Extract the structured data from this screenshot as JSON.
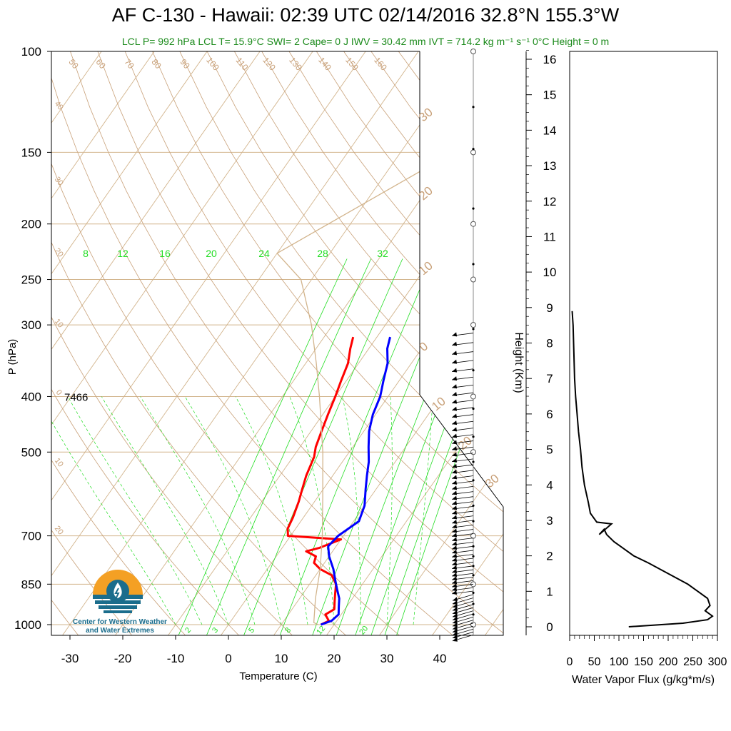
{
  "title": "AF C-130 - Hawaii: 02:39 UTC 02/14/2016  32.8°N 155.3°W",
  "subtitle": "LCL P= 992 hPa  LCL T= 15.9°C  SWI= 2  Cape= 0 J  IWV = 30.42 mm  IVT = 714.2 kg m⁻¹ s⁻¹  0°C Height = 0 m",
  "logo_text_line1": "Center for Western Weather",
  "logo_text_line2": "and Water Extremes",
  "colors": {
    "temperature": "#ff0000",
    "dewpoint": "#0000ff",
    "isotherm": "#d2b48c",
    "mixing_ratio": "#22dd22",
    "adiabat": "#c8a078",
    "subtitle": "#1a8a1a",
    "logo_orange": "#f4a024",
    "logo_blue": "#1b6d8c"
  },
  "chart_data": [
    {
      "type": "line",
      "name": "skew-t",
      "xlabel": "Temperature (C)",
      "ylabel": "P (hPa)",
      "xlim": [
        -35,
        50
      ],
      "ylim": [
        1050,
        100
      ],
      "y_scale": "log",
      "x_ticks": [
        -30,
        -20,
        -10,
        0,
        10,
        20,
        30,
        40
      ],
      "y_ticks": [
        100,
        150,
        200,
        250,
        300,
        400,
        500,
        700,
        850,
        1000
      ],
      "height_label": "7466",
      "height_label_pressure": 400,
      "mixing_ratio_top_labels": [
        "8",
        "12",
        "16",
        "20",
        "24",
        "28",
        "32"
      ],
      "mixing_ratio_bottom_labels": [
        "2",
        "3",
        "5",
        "8",
        "12",
        "20"
      ],
      "dry_adiabat_top_labels": [
        "50",
        "60",
        "70",
        "80",
        "90",
        "100",
        "110",
        "120",
        "130",
        "140",
        "150",
        "160"
      ],
      "dry_adiabat_left_labels": [
        "40",
        "30",
        "20",
        "10",
        "0",
        "10",
        "20"
      ],
      "dry_adiabat_right_labels": [
        "30",
        "20",
        "10",
        "0",
        "10",
        "20",
        "30"
      ],
      "series": [
        {
          "name": "Temperature",
          "points": [
            [
              17.5,
              1000
            ],
            [
              18.5,
              985
            ],
            [
              17.0,
              960
            ],
            [
              18.0,
              940
            ],
            [
              17.0,
              910
            ],
            [
              16.0,
              880
            ],
            [
              15.0,
              850
            ],
            [
              13.0,
              820
            ],
            [
              10.0,
              800
            ],
            [
              8.0,
              780
            ],
            [
              7.5,
              760
            ],
            [
              5.0,
              745
            ],
            [
              7.0,
              735
            ],
            [
              10.0,
              710
            ],
            [
              -0.5,
              700
            ],
            [
              -1.5,
              680
            ],
            [
              -2.0,
              650
            ],
            [
              -3.0,
              610
            ],
            [
              -4.0,
              580
            ],
            [
              -5.0,
              550
            ],
            [
              -6.0,
              510
            ],
            [
              -7.0,
              490
            ],
            [
              -8.0,
              460
            ],
            [
              -9.0,
              430
            ],
            [
              -10.0,
              400
            ],
            [
              -11.0,
              375
            ],
            [
              -12.0,
              350
            ],
            [
              -13.5,
              330
            ],
            [
              -14.5,
              315
            ]
          ]
        },
        {
          "name": "Dewpoint",
          "points": [
            [
              17.5,
              1000
            ],
            [
              19.0,
              985
            ],
            [
              19.5,
              960
            ],
            [
              18.5,
              930
            ],
            [
              17.5,
              900
            ],
            [
              16.0,
              870
            ],
            [
              14.5,
              840
            ],
            [
              12.5,
              800
            ],
            [
              10.0,
              760
            ],
            [
              8.5,
              730
            ],
            [
              9.0,
              700
            ],
            [
              11.0,
              660
            ],
            [
              10.0,
              620
            ],
            [
              8.0,
              580
            ],
            [
              6.5,
              550
            ],
            [
              5.0,
              520
            ],
            [
              3.0,
              490
            ],
            [
              1.0,
              460
            ],
            [
              -0.5,
              430
            ],
            [
              -1.5,
              400
            ],
            [
              -3.0,
              375
            ],
            [
              -4.5,
              350
            ],
            [
              -6.5,
              330
            ],
            [
              -7.5,
              315
            ]
          ]
        },
        {
          "name": "Parcel",
          "points": [
            [
              17.0,
              1000
            ],
            [
              15.9,
              992
            ],
            [
              13.0,
              900
            ],
            [
              10.0,
              800
            ],
            [
              6.0,
              700
            ],
            [
              1.0,
              600
            ],
            [
              -5.0,
              500
            ],
            [
              -13.0,
              400
            ],
            [
              -18.0,
              350
            ],
            [
              -24.0,
              300
            ],
            [
              -32.0,
              250
            ],
            [
              -40.0,
              225
            ],
            [
              -20.0,
              150
            ],
            [
              0.0,
              105
            ]
          ]
        }
      ]
    },
    {
      "type": "line",
      "name": "water-vapor-flux",
      "xlabel": "Water Vapor Flux (g/kg*m/s)",
      "ylabel": "Height (Km)",
      "xlim": [
        0,
        300
      ],
      "ylim": [
        0,
        16.5
      ],
      "x_ticks": [
        0,
        50,
        100,
        150,
        200,
        250,
        300
      ],
      "y_ticks": [
        0,
        1,
        2,
        3,
        4,
        5,
        6,
        7,
        8,
        9,
        10,
        11,
        12,
        13,
        14,
        15,
        16
      ],
      "series": [
        {
          "name": "Water Vapor Flux",
          "points": [
            [
              120,
              0.0
            ],
            [
              230,
              0.1
            ],
            [
              280,
              0.2
            ],
            [
              290,
              0.3
            ],
            [
              275,
              0.45
            ],
            [
              285,
              0.6
            ],
            [
              280,
              0.8
            ],
            [
              260,
              1.0
            ],
            [
              240,
              1.2
            ],
            [
              200,
              1.5
            ],
            [
              160,
              1.8
            ],
            [
              130,
              2.0
            ],
            [
              110,
              2.2
            ],
            [
              90,
              2.4
            ],
            [
              75,
              2.6
            ],
            [
              70,
              2.75
            ],
            [
              60,
              2.6
            ],
            [
              85,
              2.9
            ],
            [
              55,
              2.95
            ],
            [
              42,
              3.2
            ],
            [
              38,
              3.5
            ],
            [
              30,
              4.0
            ],
            [
              25,
              4.5
            ],
            [
              22,
              5.0
            ],
            [
              18,
              5.5
            ],
            [
              15,
              6.0
            ],
            [
              12,
              6.5
            ],
            [
              10,
              7.0
            ],
            [
              9,
              7.5
            ],
            [
              8,
              8.0
            ],
            [
              7,
              8.5
            ],
            [
              5,
              8.9
            ]
          ]
        }
      ]
    }
  ]
}
